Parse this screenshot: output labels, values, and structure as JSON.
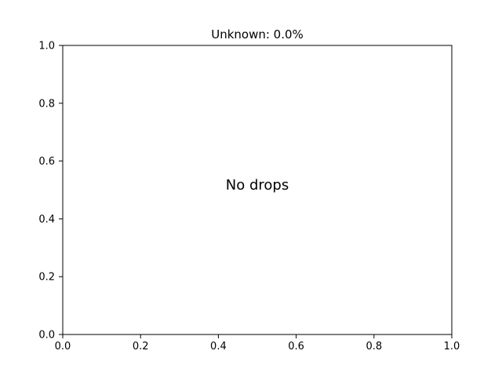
{
  "chart_data": {
    "type": "scatter",
    "title": "Unknown: 0.0%",
    "xlabel": "",
    "ylabel": "",
    "xlim": [
      0.0,
      1.0
    ],
    "ylim": [
      0.0,
      1.0
    ],
    "xticks": [
      "0.0",
      "0.2",
      "0.4",
      "0.6",
      "0.8",
      "1.0"
    ],
    "yticks": [
      "0.0",
      "0.2",
      "0.4",
      "0.6",
      "0.8",
      "1.0"
    ],
    "grid": false,
    "annotation": "No drops",
    "series": []
  }
}
